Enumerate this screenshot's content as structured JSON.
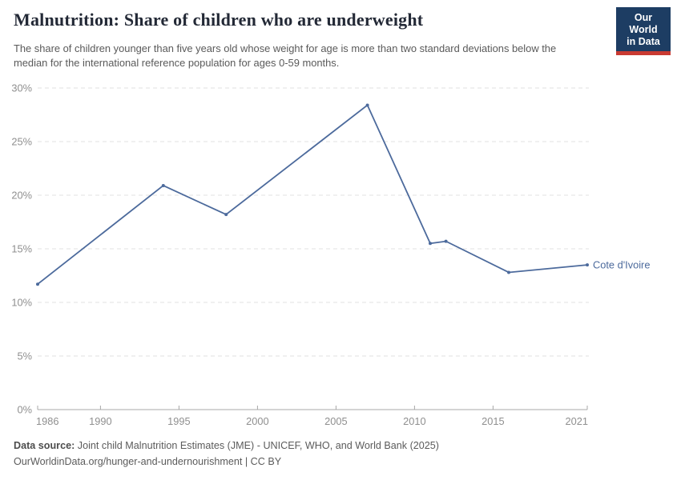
{
  "header": {
    "title": "Malnutrition: Share of children who are underweight",
    "subtitle": "The share of children younger than five years old whose weight for age is more than two standard deviations below the median for the international reference population for ages 0-59 months.",
    "logo": {
      "line1": "Our World",
      "line2": "in Data",
      "bg_color": "#1d3d63",
      "stripe_color": "#c93a32"
    }
  },
  "chart_data": {
    "type": "line",
    "title": "Malnutrition: Share of children who are underweight",
    "entity": "Cote d'Ivoire",
    "x": [
      1986,
      1994,
      1998,
      2007,
      2011,
      2012,
      2016,
      2021
    ],
    "series": [
      {
        "name": "Cote d'Ivoire",
        "values": [
          11.7,
          20.9,
          18.2,
          28.4,
          15.5,
          15.7,
          12.8,
          13.5
        ]
      }
    ],
    "xlim": [
      1986,
      2021
    ],
    "ylim": [
      0,
      30
    ],
    "x_ticks": [
      1986,
      1990,
      1995,
      2000,
      2005,
      2010,
      2015,
      2021
    ],
    "y_ticks": [
      0,
      5,
      10,
      15,
      20,
      25,
      30
    ],
    "y_tick_suffix": "%",
    "grid": true,
    "legend_position": "end-of-line",
    "end_label": "Cote d'Ivoire",
    "line_color": "#4c6a9c",
    "grid_color": "#e2e2e2",
    "axis_color": "#a8a8a8",
    "tick_label_color": "#8f8f8f"
  },
  "footer": {
    "datasource_label": "Data source:",
    "datasource_text": " Joint child Malnutrition Estimates (JME) - UNICEF, WHO, and World Bank (2025)",
    "citation": "OurWorldinData.org/hunger-and-undernourishment | CC BY"
  }
}
